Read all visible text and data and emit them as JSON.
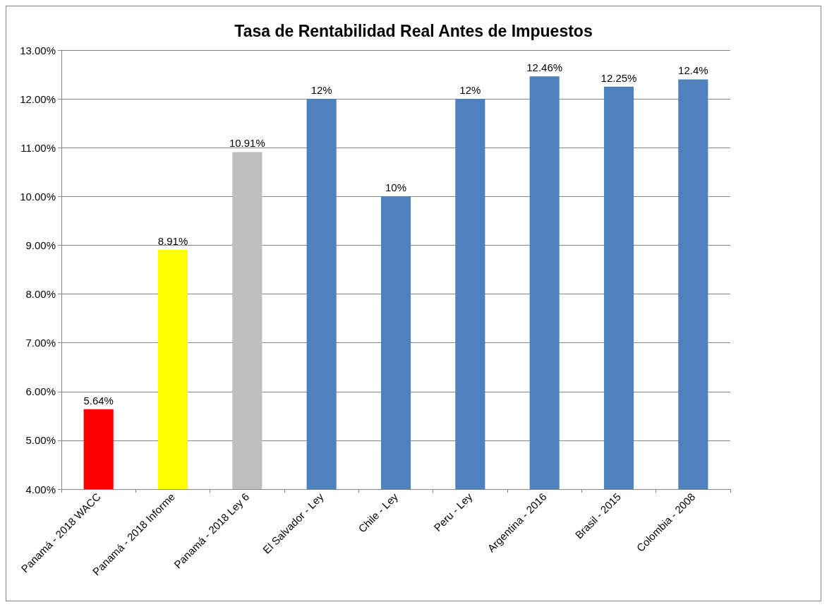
{
  "chart_data": {
    "type": "bar",
    "title": "Tasa de Rentabilidad Real Antes de Impuestos",
    "categories": [
      "Panamá - 2018 WACC",
      "Panamá - 2018 Informe",
      "Panamá - 2018 Ley 6",
      "El Salvador - Ley",
      "Chile - Ley",
      "Peru - Ley",
      "Argentina - 2016",
      "Brasil - 2015",
      "Colombia - 2008"
    ],
    "values": [
      5.64,
      8.91,
      10.91,
      12,
      10,
      12,
      12.46,
      12.25,
      12.4
    ],
    "colors": [
      "#ff0000",
      "#ffff00",
      "#bfbfbf",
      "#4f81bd",
      "#4f81bd",
      "#4f81bd",
      "#4f81bd",
      "#4f81bd",
      "#4f81bd"
    ],
    "value_labels": [
      "5.64%",
      "8.91%",
      "10.91%",
      "12%",
      "10%",
      "12%",
      "12.46%",
      "12.25%",
      "12.4%"
    ],
    "ylim": [
      4,
      13
    ],
    "yticks": [
      {
        "value": 4,
        "label": "4.00%"
      },
      {
        "value": 5,
        "label": "5.00%"
      },
      {
        "value": 6,
        "label": "6.00%"
      },
      {
        "value": 7,
        "label": "7.00%"
      },
      {
        "value": 8,
        "label": "8.00%"
      },
      {
        "value": 9,
        "label": "9.00%"
      },
      {
        "value": 10,
        "label": "10.00%"
      },
      {
        "value": 11,
        "label": "11.00%"
      },
      {
        "value": 12,
        "label": "12.00%"
      },
      {
        "value": 13,
        "label": "13.00%"
      }
    ],
    "grid": "y"
  }
}
